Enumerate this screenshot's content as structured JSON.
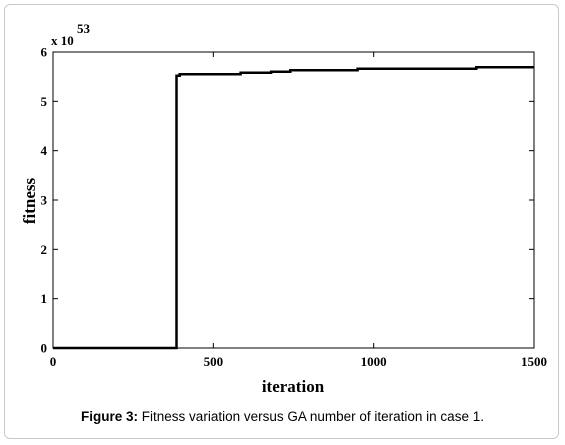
{
  "chart_data": {
    "type": "line",
    "title": "",
    "xlabel": "iteration",
    "ylabel": "fitness",
    "xlim": [
      0,
      1500
    ],
    "ylim": [
      0,
      6
    ],
    "xticks": [
      0,
      500,
      1000,
      1500
    ],
    "yticks": [
      0,
      1,
      2,
      3,
      4,
      5,
      6
    ],
    "y_scale_label": "x 10",
    "y_scale_exponent": "53",
    "grid": false,
    "legend": "none",
    "series": [
      {
        "color": "#000000",
        "points": [
          [
            0,
            0
          ],
          [
            385,
            0
          ],
          [
            385,
            5.52
          ],
          [
            395,
            5.52
          ],
          [
            395,
            5.55
          ],
          [
            585,
            5.55
          ],
          [
            585,
            5.58
          ],
          [
            680,
            5.58
          ],
          [
            680,
            5.6
          ],
          [
            740,
            5.6
          ],
          [
            740,
            5.63
          ],
          [
            950,
            5.63
          ],
          [
            950,
            5.66
          ],
          [
            1320,
            5.66
          ],
          [
            1320,
            5.69
          ],
          [
            1500,
            5.69
          ]
        ]
      }
    ]
  },
  "caption": {
    "label": "Figure 3:",
    "text": " Fitness variation versus GA number of iteration in case 1."
  }
}
